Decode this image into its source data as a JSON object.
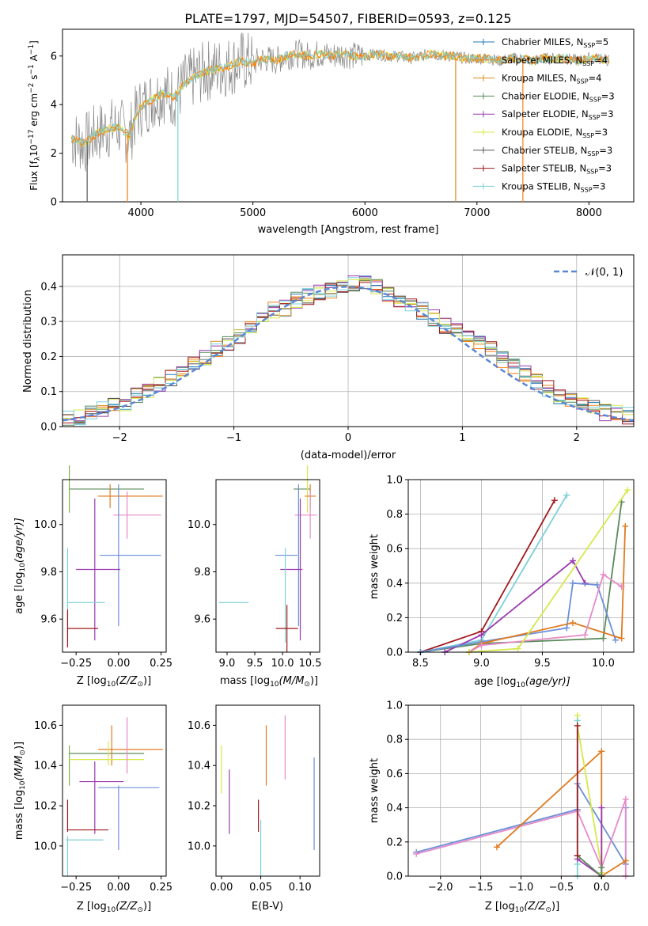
{
  "figure": {
    "title": "PLATE=1797, MJD=54507, FIBERID=0593, z=0.125"
  },
  "colors": {
    "cm": "#1f77b4",
    "sm": "#ff7f0e",
    "km": "#dd8a20",
    "ce": "#5a8a5a",
    "se": "#9c3ab0",
    "ke": "#d6e84a",
    "cs": "#555555",
    "ss": "#a0191d",
    "ks": "#7dd0d8",
    "spec_data": "#888888",
    "normal": "#5b87d6",
    "err_blue": "#6b8fd8",
    "err_orange": "#e07b20",
    "err_pink": "#e58bc8",
    "err_green": "#7ab040",
    "err_purple": "#9c3ab0",
    "err_yellow": "#d6e84a",
    "err_red": "#a0191d",
    "err_cyan": "#7dd0d8",
    "err_dark": "#555555"
  },
  "chart_data": [
    {
      "id": "spectrum",
      "type": "line",
      "title": "PLATE=1797, MJD=54507, FIBERID=0593, z=0.125",
      "xlabel": "wavelength [Angstrom, rest frame]",
      "ylabel_main": "Flux [f",
      "ylabel_sub": "λ",
      "ylabel_rest": "10",
      "ylabel_exp": "−17",
      "ylabel_tail": " erg cm",
      "ylabel_exp2": "−2",
      "ylabel_s": " s",
      "ylabel_exp3": "−1",
      "ylabel_A": " A",
      "ylabel_exp4": "−1",
      "ylabel_end": "]",
      "xlim": [
        3300,
        8400
      ],
      "ylim": [
        0,
        7.1
      ],
      "xticks": [
        4000,
        5000,
        6000,
        7000,
        8000
      ],
      "yticks": [
        0,
        2,
        4,
        6
      ],
      "continuum": [
        [
          3380,
          2.6
        ],
        [
          3500,
          2.4
        ],
        [
          3600,
          2.8
        ],
        [
          3700,
          3.0
        ],
        [
          3800,
          3.1
        ],
        [
          3900,
          2.7
        ],
        [
          3950,
          3.5
        ],
        [
          4000,
          3.9
        ],
        [
          4100,
          4.2
        ],
        [
          4200,
          4.5
        ],
        [
          4300,
          4.3
        ],
        [
          4400,
          4.9
        ],
        [
          4500,
          5.2
        ],
        [
          4600,
          5.4
        ],
        [
          4700,
          5.5
        ],
        [
          4800,
          5.6
        ],
        [
          4900,
          5.8
        ],
        [
          5000,
          5.7
        ],
        [
          5100,
          5.9
        ],
        [
          5200,
          5.8
        ],
        [
          5300,
          6.0
        ],
        [
          5400,
          6.1
        ],
        [
          5500,
          6.0
        ],
        [
          5600,
          6.1
        ],
        [
          5700,
          6.0
        ],
        [
          5800,
          6.1
        ],
        [
          5900,
          6.0
        ],
        [
          6000,
          6.0
        ],
        [
          6100,
          6.1
        ],
        [
          6200,
          6.0
        ],
        [
          6300,
          6.0
        ],
        [
          6400,
          5.9
        ],
        [
          6500,
          6.0
        ],
        [
          6600,
          6.1
        ],
        [
          6700,
          6.0
        ],
        [
          6800,
          6.0
        ],
        [
          6900,
          5.9
        ],
        [
          7000,
          5.9
        ],
        [
          7100,
          5.9
        ],
        [
          7200,
          5.8
        ],
        [
          7300,
          5.9
        ],
        [
          7400,
          5.9
        ],
        [
          7500,
          5.8
        ],
        [
          7600,
          5.9
        ],
        [
          7700,
          5.9
        ],
        [
          7800,
          5.9
        ],
        [
          7900,
          5.8
        ],
        [
          8000,
          5.9
        ],
        [
          8100,
          5.9
        ],
        [
          8180,
          5.8
        ]
      ],
      "legend": [
        {
          "label": "Chabrier MILES, N",
          "sub": "SSP",
          "tail": "=5",
          "color_key": "cm"
        },
        {
          "label": "Salpeter MILES, N",
          "sub": "SSP",
          "tail": "=4",
          "color_key": "sm"
        },
        {
          "label": "Kroupa MILES, N",
          "sub": "SSP",
          "tail": "=4",
          "color_key": "km"
        },
        {
          "label": "Chabrier ELODIE, N",
          "sub": "SSP",
          "tail": "=3",
          "color_key": "ce"
        },
        {
          "label": "Salpeter ELODIE, N",
          "sub": "SSP",
          "tail": "=3",
          "color_key": "se"
        },
        {
          "label": "Kroupa ELODIE, N",
          "sub": "SSP",
          "tail": "=3",
          "color_key": "ke"
        },
        {
          "label": "Chabrier STELIB, N",
          "sub": "SSP",
          "tail": "=3",
          "color_key": "cs"
        },
        {
          "label": "Salpeter STELIB, N",
          "sub": "SSP",
          "tail": "=3",
          "color_key": "ss"
        },
        {
          "label": "Kroupa STELIB, N",
          "sub": "SSP",
          "tail": "=3",
          "color_key": "ks"
        }
      ],
      "legend_placement": "upper-right"
    },
    {
      "id": "residuals",
      "type": "line",
      "xlabel": "(data-model)/error",
      "ylabel": "Normed distribution",
      "xlim": [
        -2.5,
        2.5
      ],
      "ylim": [
        0,
        0.49
      ],
      "xticks": [
        -2,
        -1,
        0,
        1,
        2
      ],
      "yticks": [
        0.0,
        0.1,
        0.2,
        0.3,
        0.4
      ],
      "grid": true,
      "bins": [
        -2.5,
        -2.4,
        -2.3,
        -2.2,
        -2.1,
        -2.0,
        -1.9,
        -1.8,
        -1.7,
        -1.6,
        -1.5,
        -1.4,
        -1.3,
        -1.2,
        -1.1,
        -1.0,
        -0.9,
        -0.8,
        -0.7,
        -0.6,
        -0.5,
        -0.4,
        -0.3,
        -0.2,
        -0.1,
        0.0,
        0.1,
        0.2,
        0.3,
        0.4,
        0.5,
        0.6,
        0.7,
        0.8,
        0.9,
        1.0,
        1.1,
        1.2,
        1.3,
        1.4,
        1.5,
        1.6,
        1.7,
        1.8,
        1.9,
        2.0,
        2.1,
        2.2,
        2.3,
        2.4,
        2.5
      ],
      "series_shape": [
        0.02,
        0.03,
        0.04,
        0.05,
        0.06,
        0.07,
        0.09,
        0.1,
        0.12,
        0.14,
        0.16,
        0.18,
        0.2,
        0.22,
        0.24,
        0.26,
        0.29,
        0.31,
        0.33,
        0.34,
        0.36,
        0.37,
        0.38,
        0.39,
        0.4,
        0.41,
        0.41,
        0.4,
        0.38,
        0.36,
        0.35,
        0.33,
        0.31,
        0.29,
        0.27,
        0.26,
        0.24,
        0.22,
        0.19,
        0.17,
        0.15,
        0.13,
        0.11,
        0.09,
        0.08,
        0.07,
        0.05,
        0.04,
        0.04,
        0.03
      ],
      "legend": [
        {
          "label": "𝒩(0, 1)"
        }
      ]
    },
    {
      "id": "age_vs_Z",
      "type": "scatter",
      "xlabel": "Z [log",
      "xlabel_sub": "10",
      "xlabel_mid": "(Z/Z",
      "xlabel_sun": "⊙",
      "xlabel_end": ")]",
      "ylabel": "age  [log",
      "ylabel_sub": "10",
      "ylabel_end": "(age/yr)]",
      "xlim": [
        -0.33,
        0.28
      ],
      "ylim": [
        9.46,
        10.19
      ],
      "xticks": [
        -0.25,
        0.0,
        0.25
      ],
      "yticks": [
        9.6,
        9.8,
        10.0
      ]
    },
    {
      "id": "age_vs_mass",
      "type": "scatter",
      "xlabel": "mass [log",
      "xlabel_sub": "10",
      "xlabel_mid": "(M/M",
      "xlabel_sun": "⊙",
      "xlabel_end": ")]",
      "xlim": [
        8.8,
        10.67
      ],
      "ylim": [
        9.46,
        10.19
      ],
      "xticks": [
        9.0,
        9.5,
        10.0,
        10.5
      ],
      "yticks": [
        9.6,
        9.8,
        10.0
      ]
    },
    {
      "id": "weight_vs_age",
      "type": "line",
      "xlabel": "age  [log",
      "xlabel_sub": "10",
      "xlabel_end": "(age/yr)]",
      "ylabel": "mass weight",
      "xlim": [
        8.4,
        10.25
      ],
      "ylim": [
        0,
        1.0
      ],
      "xticks": [
        8.5,
        9.0,
        9.5,
        10.0
      ],
      "yticks": [
        0.0,
        0.2,
        0.4,
        0.6,
        0.8,
        1.0
      ],
      "grid": true,
      "series": [
        {
          "color_key": "ss",
          "x": [
            8.5,
            9.0,
            9.6
          ],
          "y": [
            0.0,
            0.12,
            0.88
          ]
        },
        {
          "color_key": "ks",
          "x": [
            8.5,
            9.0,
            9.7
          ],
          "y": [
            0.0,
            0.07,
            0.91
          ]
        },
        {
          "color_key": "ce",
          "x": [
            8.5,
            9.0,
            10.0,
            10.15
          ],
          "y": [
            0.0,
            0.05,
            0.08,
            0.87
          ]
        },
        {
          "color_key": "se",
          "x": [
            8.7,
            9.0,
            9.75,
            9.85
          ],
          "y": [
            0.0,
            0.1,
            0.53,
            0.4
          ]
        },
        {
          "color_key": "err_blue",
          "x": [
            8.5,
            9.0,
            9.7,
            9.75,
            9.95,
            10.1
          ],
          "y": [
            0.0,
            0.06,
            0.14,
            0.4,
            0.39,
            0.07
          ]
        },
        {
          "color_key": "err_orange",
          "x": [
            8.9,
            9.0,
            9.75,
            10.15,
            10.18
          ],
          "y": [
            0.0,
            0.05,
            0.17,
            0.08,
            0.73
          ]
        },
        {
          "color_key": "err_pink",
          "x": [
            8.9,
            9.0,
            9.85,
            10.0,
            10.15
          ],
          "y": [
            0.0,
            0.04,
            0.1,
            0.45,
            0.38
          ]
        },
        {
          "color_key": "err_yellow",
          "x": [
            8.9,
            9.3,
            10.2
          ],
          "y": [
            0.0,
            0.02,
            0.94
          ]
        }
      ]
    },
    {
      "id": "mass_vs_Z",
      "type": "scatter",
      "xlabel": "Z [log",
      "xlabel_sub": "10",
      "xlabel_mid": "(Z/Z",
      "xlabel_sun": "⊙",
      "xlabel_end": ")]",
      "ylabel": "mass [log",
      "ylabel_sub": "10",
      "ylabel_mid": "(M/M",
      "ylabel_sun": "⊙",
      "ylabel_end": ")]",
      "xlim": [
        -0.33,
        0.28
      ],
      "ylim": [
        9.85,
        10.7
      ],
      "xticks": [
        -0.25,
        0.0,
        0.25
      ],
      "yticks": [
        10.0,
        10.2,
        10.4,
        10.6
      ]
    },
    {
      "id": "mass_vs_ebv",
      "type": "scatter",
      "xlabel": "E(B-V)",
      "xlim": [
        -0.007,
        0.125
      ],
      "ylim": [
        9.85,
        10.7
      ],
      "xticks": [
        0.0,
        0.05,
        0.1
      ],
      "yticks": [
        10.0,
        10.2,
        10.4,
        10.6
      ]
    },
    {
      "id": "weight_vs_Z",
      "type": "line",
      "xlabel": "Z [log",
      "xlabel_sub": "10",
      "xlabel_mid": "(Z/Z",
      "xlabel_sun": "⊙",
      "xlabel_end": ")]",
      "ylabel": "mass weight",
      "xlim": [
        -2.4,
        0.4
      ],
      "ylim": [
        0,
        1.0
      ],
      "xticks": [
        -2.0,
        -1.5,
        -1.0,
        -0.5,
        0.0
      ],
      "yticks": [
        0.0,
        0.2,
        0.4,
        0.6,
        0.8,
        1.0
      ],
      "grid": true,
      "series": [
        {
          "color_key": "err_blue",
          "x": [
            -2.3,
            -0.3,
            -0.3,
            0.3,
            0.3
          ],
          "y": [
            0.14,
            0.39,
            0.54,
            0.07,
            0.4
          ]
        },
        {
          "color_key": "err_pink",
          "x": [
            -2.3,
            -0.3,
            0.0,
            0.3,
            0.3
          ],
          "y": [
            0.13,
            0.38,
            0.05,
            0.45,
            0.0
          ]
        },
        {
          "color_key": "err_orange",
          "x": [
            -1.3,
            0.0,
            0.0,
            0.3
          ],
          "y": [
            0.17,
            0.73,
            0.0,
            0.09
          ]
        },
        {
          "color_key": "err_yellow",
          "x": [
            -0.3,
            -0.3,
            0.0,
            0.0
          ],
          "y": [
            0.94,
            0.88,
            0.05,
            0.02
          ]
        },
        {
          "color_key": "ks",
          "x": [
            -0.3,
            -0.3,
            -0.3
          ],
          "y": [
            0.91,
            0.0,
            0.07
          ]
        },
        {
          "color_key": "se",
          "x": [
            -0.3,
            0.0,
            0.0
          ],
          "y": [
            0.1,
            0.0,
            0.4
          ]
        },
        {
          "color_key": "ce",
          "x": [
            -0.3,
            0.0,
            0.0
          ],
          "y": [
            0.12,
            0.0,
            0.05
          ]
        },
        {
          "color_key": "ss",
          "x": [
            -0.3,
            -0.3
          ],
          "y": [
            0.88,
            0.12
          ]
        }
      ]
    }
  ]
}
